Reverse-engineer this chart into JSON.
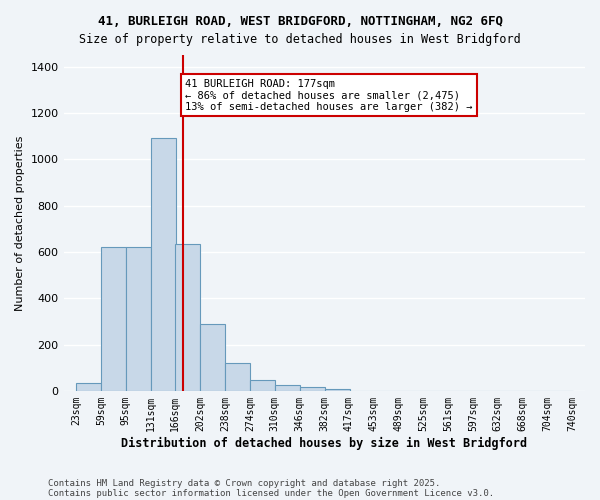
{
  "title_line1": "41, BURLEIGH ROAD, WEST BRIDGFORD, NOTTINGHAM, NG2 6FQ",
  "title_line2": "Size of property relative to detached houses in West Bridgford",
  "xlabel": "Distribution of detached houses by size in West Bridgford",
  "ylabel": "Number of detached properties",
  "bin_labels": [
    "23sqm",
    "59sqm",
    "95sqm",
    "131sqm",
    "166sqm",
    "202sqm",
    "238sqm",
    "274sqm",
    "310sqm",
    "346sqm",
    "382sqm",
    "417sqm",
    "453sqm",
    "489sqm",
    "525sqm",
    "561sqm",
    "597sqm",
    "632sqm",
    "668sqm",
    "704sqm",
    "740sqm"
  ],
  "bin_edges": [
    23,
    59,
    95,
    131,
    166,
    202,
    238,
    274,
    310,
    346,
    382,
    417,
    453,
    489,
    525,
    561,
    597,
    632,
    668,
    704,
    740
  ],
  "bar_heights": [
    35,
    620,
    620,
    1090,
    635,
    290,
    120,
    48,
    25,
    20,
    10,
    0,
    0,
    0,
    0,
    0,
    0,
    0,
    0,
    0
  ],
  "bar_color": "#c8d8e8",
  "bar_edge_color": "#6699bb",
  "property_size": 177,
  "vline_color": "#cc0000",
  "annotation_text": "41 BURLEIGH ROAD: 177sqm\n← 86% of detached houses are smaller (2,475)\n13% of semi-detached houses are larger (382) →",
  "annotation_box_color": "#ffffff",
  "annotation_box_edge_color": "#cc0000",
  "ylim": [
    0,
    1450
  ],
  "yticks": [
    0,
    200,
    400,
    600,
    800,
    1000,
    1200,
    1400
  ],
  "background_color": "#f0f4f8",
  "grid_color": "#ffffff",
  "footer_line1": "Contains HM Land Registry data © Crown copyright and database right 2025.",
  "footer_line2": "Contains public sector information licensed under the Open Government Licence v3.0."
}
